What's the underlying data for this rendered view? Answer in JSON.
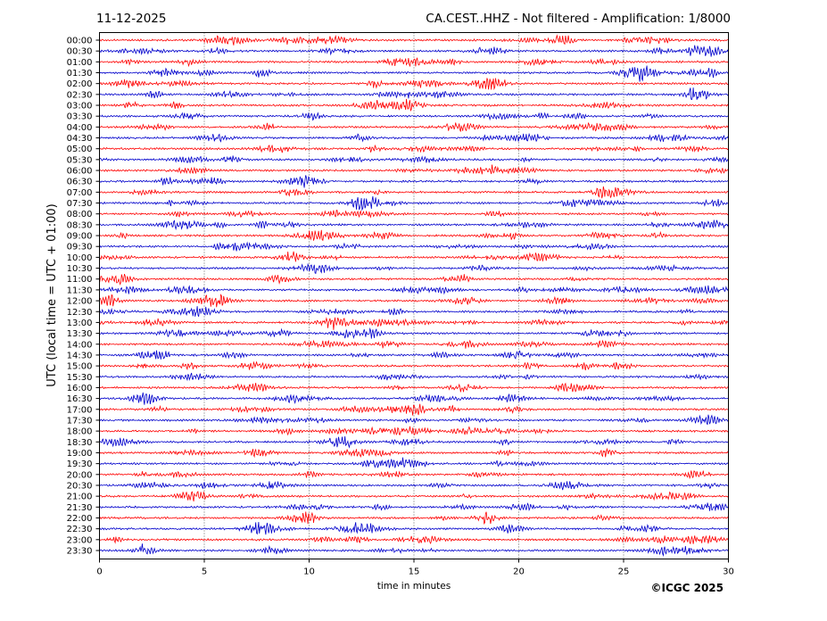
{
  "chart_data": {
    "type": "line",
    "date": "11-12-2025",
    "title": "CA.CEST..HHZ - Not filtered - Amplification: 1/8000",
    "xlabel": "time in minutes",
    "ylabel": "UTC (local time = UTC + 01:00)",
    "xlim": [
      0,
      30
    ],
    "x_ticks": [
      0,
      5,
      10,
      15,
      20,
      25,
      30
    ],
    "grid": true,
    "row_colors": [
      "#ff0000",
      "#0000cc"
    ],
    "rows": [
      "00:00",
      "00:30",
      "01:00",
      "01:30",
      "02:00",
      "02:30",
      "03:00",
      "03:30",
      "04:00",
      "04:30",
      "05:00",
      "05:30",
      "06:00",
      "06:30",
      "07:00",
      "07:30",
      "08:00",
      "08:30",
      "09:00",
      "09:30",
      "10:00",
      "10:30",
      "11:00",
      "11:30",
      "12:00",
      "12:30",
      "13:00",
      "13:30",
      "14:00",
      "14:30",
      "15:00",
      "15:30",
      "16:00",
      "16:30",
      "17:00",
      "17:30",
      "18:00",
      "18:30",
      "19:00",
      "19:30",
      "20:00",
      "20:30",
      "21:00",
      "21:30",
      "22:00",
      "22:30",
      "23:00",
      "23:30"
    ]
  },
  "copyright": "©ICGC 2025"
}
